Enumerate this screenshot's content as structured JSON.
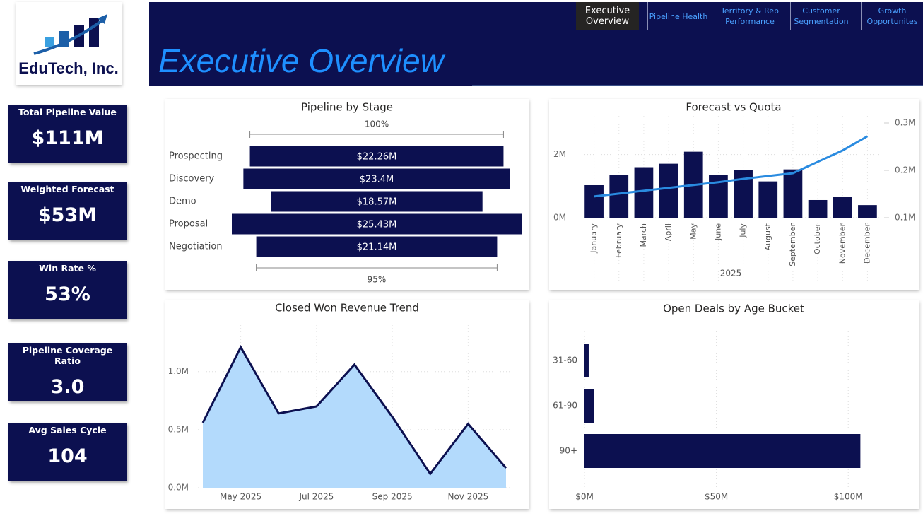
{
  "logo": {
    "text": "EduTech, Inc."
  },
  "header": {
    "title": "Executive Overview"
  },
  "nav": {
    "tabs": [
      {
        "label": "Executive Overview",
        "active": true
      },
      {
        "label": "Pipeline Health",
        "active": false
      },
      {
        "label": "Territory & Rep Performance",
        "active": false
      },
      {
        "label": "Customer Segmentation",
        "active": false
      },
      {
        "label": "Growth Opportunites",
        "active": false
      }
    ]
  },
  "kpis": [
    {
      "label": "Total Pipeline Value",
      "value": "$111M"
    },
    {
      "label": "Weighted Forecast",
      "value": "$53M"
    },
    {
      "label": "Win Rate %",
      "value": "53%"
    },
    {
      "label": "Pipeline Coverage Ratio",
      "value": "3.0"
    },
    {
      "label": "Avg Sales Cycle",
      "value": "104"
    }
  ],
  "chart_data": [
    {
      "type": "funnel",
      "title": "Pipeline by Stage",
      "categories": [
        "Prospecting",
        "Discovery",
        "Demo",
        "Proposal",
        "Negotiation"
      ],
      "values": [
        22260000,
        23400000,
        18570000,
        25430000,
        21140000
      ],
      "value_labels": [
        "$22.26M",
        "$23.4M",
        "$18.57M",
        "$25.43M",
        "$21.14M"
      ],
      "color": "#0c1050",
      "annotations": [
        "100%",
        "95%"
      ]
    },
    {
      "type": "combo",
      "title": "Forecast vs Quota",
      "categories": [
        "January",
        "February",
        "March",
        "April",
        "May",
        "June",
        "July",
        "August",
        "September",
        "October",
        "November",
        "December"
      ],
      "x_label": "2025",
      "series": [
        {
          "type": "bar",
          "color": "#0c1050",
          "values": [
            1030000,
            1350000,
            1600000,
            1710000,
            2090000,
            1350000,
            1510000,
            1150000,
            1530000,
            560000,
            650000,
            400000
          ]
        },
        {
          "type": "line",
          "axis": "y2",
          "color": "#2a8be0",
          "values": [
            145000,
            151000,
            157000,
            163000,
            169000,
            175000,
            182000,
            188000,
            194000,
            218000,
            242000,
            272000
          ]
        }
      ],
      "ylim": [
        0,
        3000000
      ],
      "yticks": [
        {
          "value": 0,
          "label": "0M"
        },
        {
          "value": 2000000,
          "label": "2M"
        }
      ],
      "y2lim": [
        100000,
        300000
      ],
      "y2ticks": [
        {
          "value": 100000,
          "label": "0.1M"
        },
        {
          "value": 200000,
          "label": "0.2M"
        },
        {
          "value": 300000,
          "label": "0.3M"
        }
      ],
      "grid": true
    },
    {
      "type": "area",
      "title": "Closed Won Revenue Trend",
      "categories": [
        null,
        "May 2025",
        null,
        "Jul 2025",
        null,
        "Sep 2025",
        null,
        "Nov 2025",
        null
      ],
      "values": [
        560000,
        1210000,
        640000,
        700000,
        1060000,
        610000,
        120000,
        550000,
        170000
      ],
      "color": "#b3dafc",
      "line_color": "#0c1050",
      "ylim": [
        0,
        1400000
      ],
      "yticks": [
        {
          "value": 0,
          "label": "0.0M"
        },
        {
          "value": 500000,
          "label": "0.5M"
        },
        {
          "value": 1000000,
          "label": "1.0M"
        }
      ],
      "grid": true
    },
    {
      "type": "bar",
      "orientation": "horizontal",
      "title": "Open Deals by Age Bucket",
      "categories": [
        "31-60",
        "61-90",
        "90+"
      ],
      "values": [
        1600000,
        3500000,
        104600000
      ],
      "color": "#0c1050",
      "xlim": [
        0,
        112000000
      ],
      "xticks": [
        {
          "value": 0,
          "label": "$0M"
        },
        {
          "value": 50000000,
          "label": "$50M"
        },
        {
          "value": 100000000,
          "label": "$100M"
        }
      ],
      "grid": true
    }
  ]
}
